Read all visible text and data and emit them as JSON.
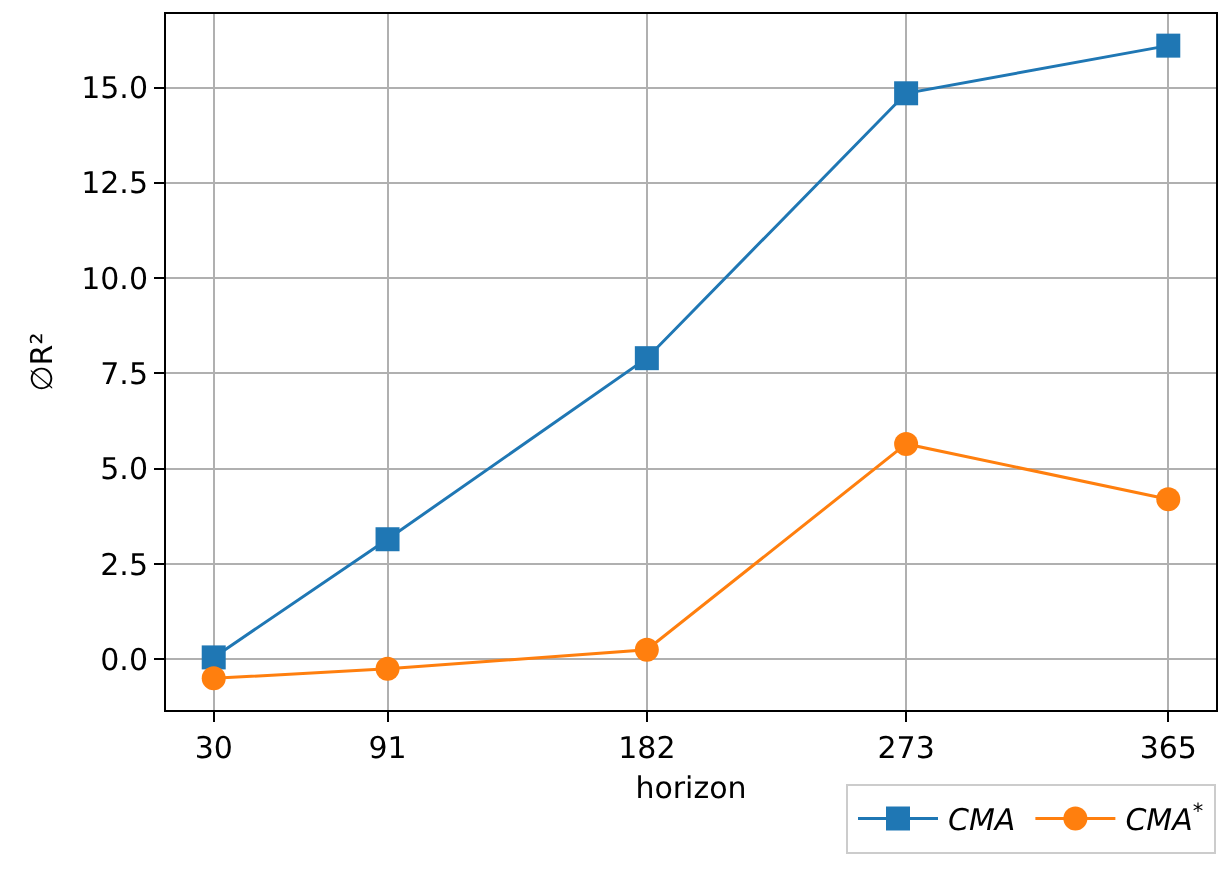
{
  "chart_data": {
    "type": "line",
    "xlabel": "horizon",
    "ylabel": "∅R²",
    "x": [
      30,
      91,
      182,
      273,
      365
    ],
    "series": [
      {
        "name": "CMA",
        "color": "#1f77b4",
        "marker": "square",
        "values": [
          0.05,
          3.15,
          7.9,
          14.85,
          16.1
        ]
      },
      {
        "name": "CMA$^{*}$",
        "color": "#ff7f0e",
        "marker": "circle",
        "values": [
          -0.5,
          -0.25,
          0.25,
          5.65,
          4.2
        ]
      }
    ],
    "xlim": [
      13.25,
      381.75
    ],
    "xticks": [
      30,
      91,
      182,
      273,
      365
    ],
    "ylim": [
      -1.33,
      16.93
    ],
    "yticks": [
      {
        "value": 0,
        "label": "0.0"
      },
      2.5,
      {
        "value": 5,
        "label": "5.0"
      },
      7.5,
      {
        "value": 10,
        "label": "10.0"
      },
      12.5,
      {
        "value": 15,
        "label": "15.0"
      }
    ],
    "grid": true,
    "legend": "bottom right",
    "line_style": "solid"
  }
}
